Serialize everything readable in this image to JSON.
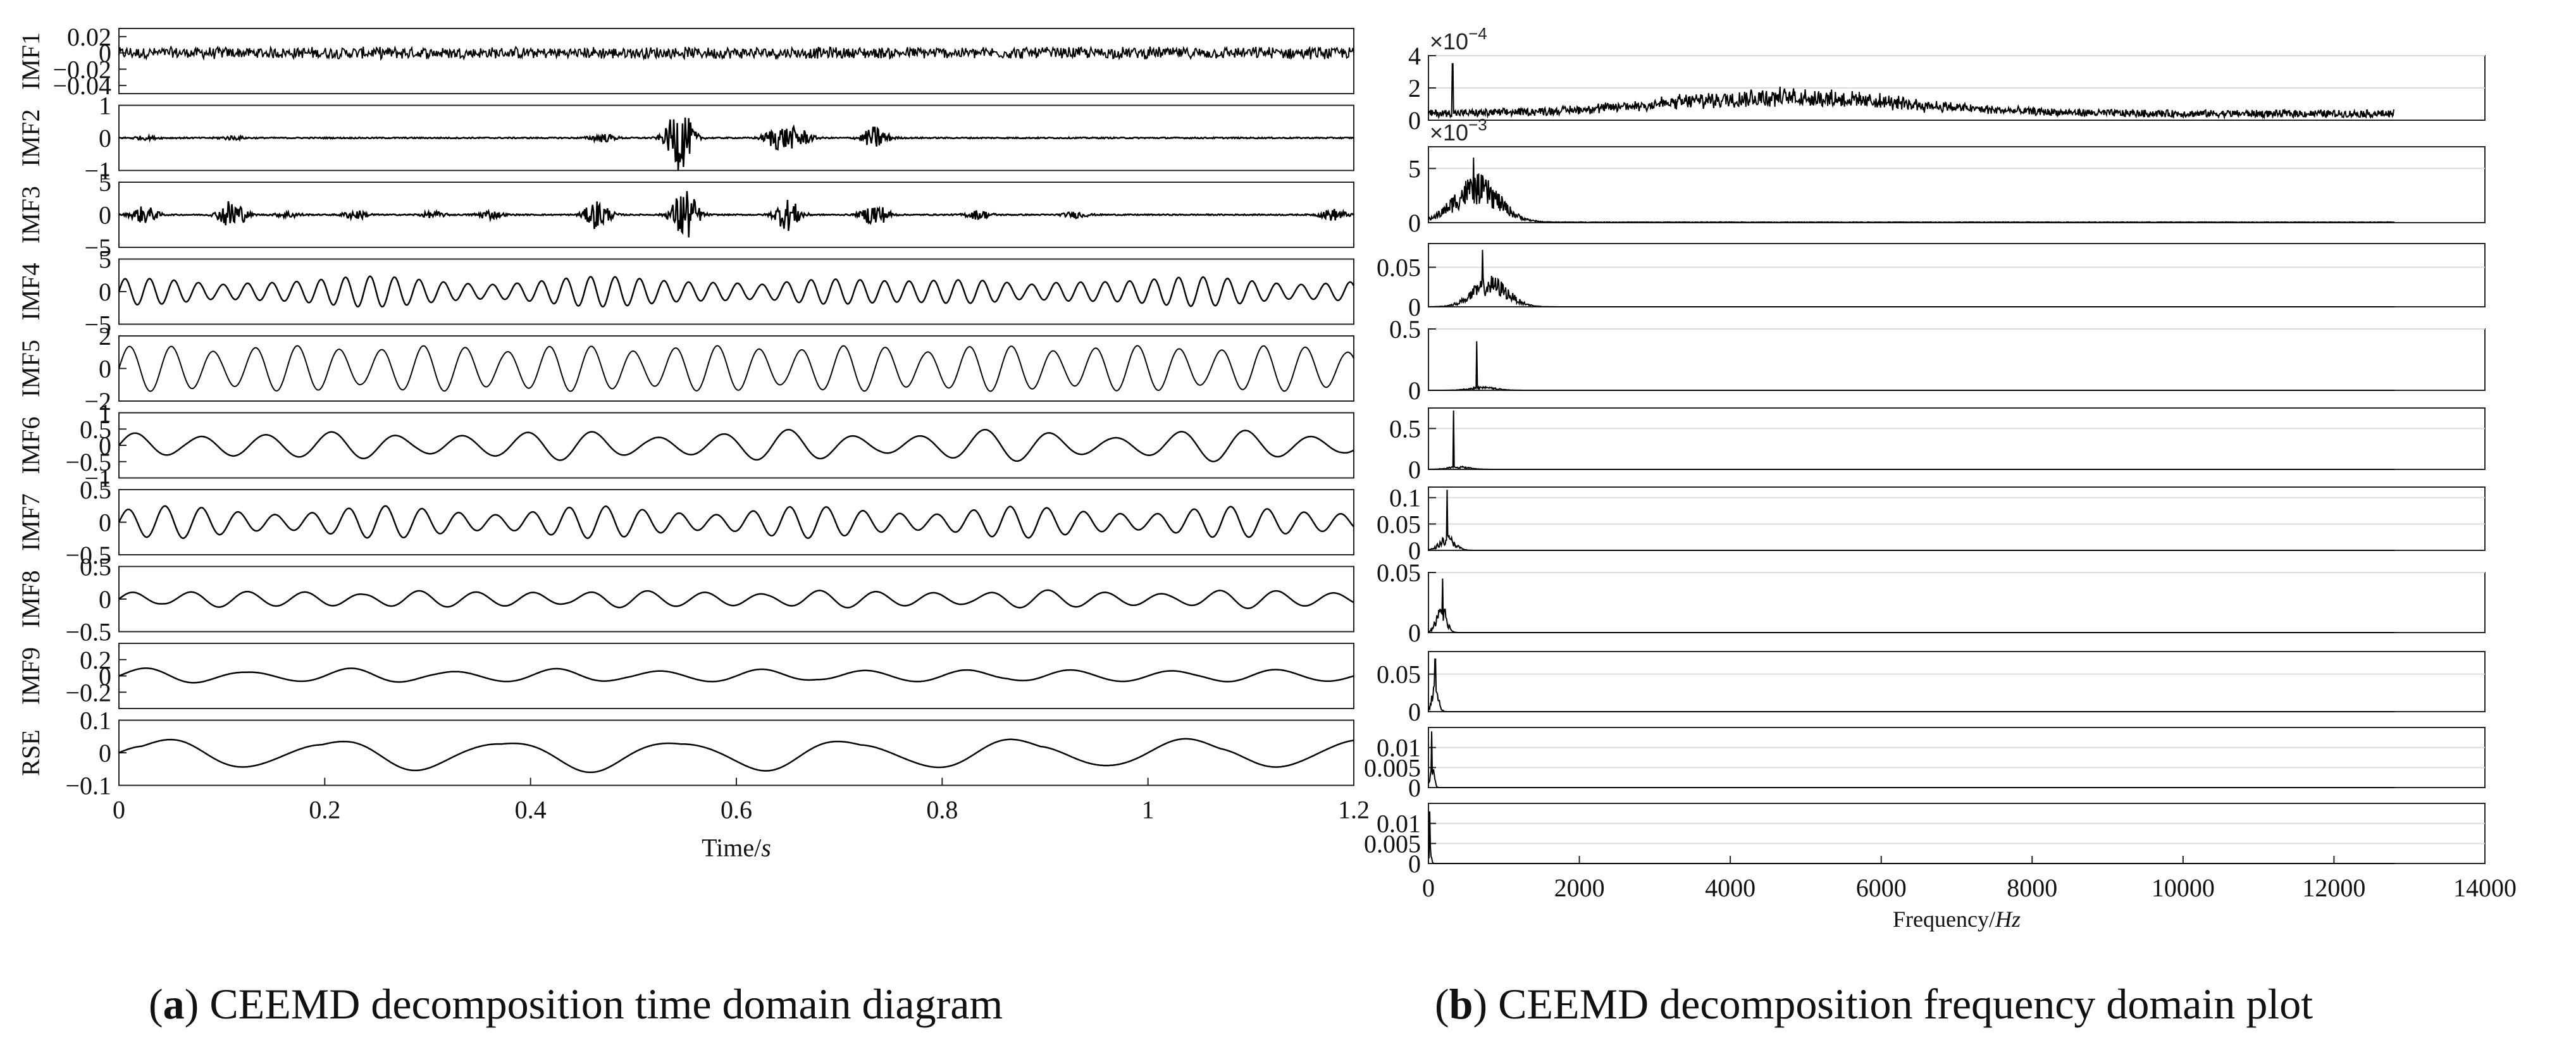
{
  "captions": {
    "a_letter": "a",
    "a_text": "CEEMD decomposition time domain diagram",
    "b_letter": "b",
    "b_text": "CEEMD decomposition frequency domain plot"
  },
  "chart_data": [
    {
      "id": "time-domain",
      "type": "line",
      "xlabel": "Time/s",
      "xlim": [
        0,
        1.2
      ],
      "xticks": [
        "0",
        "0.2",
        "0.4",
        "0.6",
        "0.8",
        "1",
        "1.2"
      ],
      "color": "#000000",
      "series": [
        {
          "name": "IMF1",
          "ylim": [
            -0.05,
            0.03
          ],
          "yticks": [
            "0.02",
            "0",
            "-0.02",
            "-0.04"
          ],
          "amplitude": 0.008,
          "freq_hz": 400,
          "style": "noise"
        },
        {
          "name": "IMF2",
          "ylim": [
            -1,
            1
          ],
          "yticks": [
            "1",
            "0",
            "-1"
          ],
          "amplitude": 1.0,
          "freq_hz": 300,
          "style": "bursts",
          "bursts": [
            [
              0.025,
              0.05
            ],
            [
              0.11,
              0.05
            ],
            [
              0.47,
              0.12
            ],
            [
              0.545,
              1.0
            ],
            [
              0.64,
              0.35
            ],
            [
              0.66,
              0.3
            ],
            [
              0.735,
              0.35
            ]
          ]
        },
        {
          "name": "IMF3",
          "ylim": [
            -5,
            5
          ],
          "yticks": [
            "5",
            "0",
            "-5"
          ],
          "amplitude": 4.5,
          "freq_hz": 200,
          "style": "bursts",
          "bursts": [
            [
              0.025,
              0.3
            ],
            [
              0.11,
              0.55
            ],
            [
              0.165,
              0.1
            ],
            [
              0.23,
              0.15
            ],
            [
              0.305,
              0.1
            ],
            [
              0.36,
              0.15
            ],
            [
              0.465,
              0.5
            ],
            [
              0.55,
              0.95
            ],
            [
              0.65,
              0.55
            ],
            [
              0.735,
              0.4
            ],
            [
              0.835,
              0.15
            ],
            [
              0.93,
              0.1
            ],
            [
              1.18,
              0.2
            ]
          ]
        },
        {
          "name": "IMF4",
          "ylim": [
            -5,
            5
          ],
          "yticks": [
            "5",
            "0",
            "-5"
          ],
          "amplitude": 2.4,
          "freq_hz": 120,
          "style": "modulated"
        },
        {
          "name": "IMF5",
          "ylim": [
            -2,
            2
          ],
          "yticks": [
            "2",
            "0",
            "-2"
          ],
          "amplitude": 1.4,
          "freq_hz": 70,
          "style": "dense"
        },
        {
          "name": "IMF6",
          "ylim": [
            -1,
            1
          ],
          "yticks": [
            "1",
            "0.5",
            "0",
            "-0.5",
            "-1"
          ],
          "amplitude": 0.5,
          "freq_hz": 45,
          "style": "modulated"
        },
        {
          "name": "IMF7",
          "ylim": [
            -0.5,
            0.5
          ],
          "yticks": [
            "0.5",
            "0",
            "-0.5"
          ],
          "amplitude": 0.25,
          "freq_hz": 28,
          "style": "modulated"
        },
        {
          "name": "IMF8",
          "ylim": [
            -0.5,
            0.5
          ],
          "yticks": [
            "0.5",
            "0",
            "-0.5"
          ],
          "amplitude": 0.16,
          "freq_hz": 18,
          "style": "modulated"
        },
        {
          "name": "IMF9",
          "ylim": [
            -0.4,
            0.4
          ],
          "yticks": [
            "0.2",
            "0",
            "-0.2"
          ],
          "amplitude": 0.1,
          "freq_hz": 10,
          "style": "modulated"
        },
        {
          "name": "RSE",
          "ylim": [
            -0.1,
            0.1
          ],
          "yticks": [
            "0.1",
            "0",
            "-0.1"
          ],
          "amplitude": 0.06,
          "freq_hz": 6,
          "style": "modulated"
        }
      ]
    },
    {
      "id": "frequency-domain",
      "type": "line",
      "xlabel_main": "Frequency/",
      "xlabel_unit": "Hz",
      "xlim": [
        0,
        14000
      ],
      "xticks": [
        "0",
        "2000",
        "4000",
        "6000",
        "8000",
        "10000",
        "12000",
        "14000"
      ],
      "data_end_hz": 12800,
      "color": "#000000",
      "series": [
        {
          "ylim": [
            0,
            4
          ],
          "yticks": [
            "4",
            "2",
            "0"
          ],
          "exponent": "×10^-4",
          "exp_base": "×10",
          "exp_pow": "-4",
          "peak_hz": 4700,
          "spread_hz": 2300,
          "peak_value": 1.5,
          "spike_hz": 320,
          "spike_value": 3.5,
          "floor": 0.45
        },
        {
          "ylim": [
            0,
            7
          ],
          "yticks": [
            "5",
            "0"
          ],
          "exponent": "×10^-3",
          "exp_base": "×10",
          "exp_pow": "-3",
          "peak_hz": 640,
          "spread_hz": 420,
          "peak_value": 4.5,
          "spike_hz": 600,
          "spike_value": 6.0,
          "floor": 0.05
        },
        {
          "ylim": [
            0,
            0.08
          ],
          "yticks": [
            "0.05",
            "0"
          ],
          "peak_hz": 820,
          "spread_hz": 330,
          "peak_value": 0.04,
          "spike_hz": 720,
          "spike_value": 0.072,
          "floor": 0.0
        },
        {
          "ylim": [
            0,
            0.5
          ],
          "yticks": [
            "0.5",
            "0"
          ],
          "peak_hz": 720,
          "spread_hz": 250,
          "peak_value": 0.03,
          "spike_hz": 640,
          "spike_value": 0.4,
          "floor": 0.0
        },
        {
          "ylim": [
            0,
            0.75
          ],
          "yticks": [
            "0.5",
            "0"
          ],
          "peak_hz": 400,
          "spread_hz": 200,
          "peak_value": 0.04,
          "spike_hz": 330,
          "spike_value": 0.72,
          "floor": 0.0
        },
        {
          "ylim": [
            0,
            0.12
          ],
          "yticks": [
            "0.1",
            "0.05",
            "0"
          ],
          "peak_hz": 250,
          "spread_hz": 140,
          "peak_value": 0.03,
          "spike_hz": 250,
          "spike_value": 0.115,
          "floor": 0.0
        },
        {
          "ylim": [
            0,
            0.05
          ],
          "yticks": [
            "0.05",
            "0"
          ],
          "peak_hz": 170,
          "spread_hz": 90,
          "peak_value": 0.03,
          "spike_hz": 190,
          "spike_value": 0.045,
          "floor": 0.0
        },
        {
          "ylim": [
            0,
            0.08
          ],
          "yticks": [
            "0.05",
            "0"
          ],
          "peak_hz": 90,
          "spread_hz": 60,
          "peak_value": 0.04,
          "spike_hz": 90,
          "spike_value": 0.07,
          "floor": 0.0
        },
        {
          "ylim": [
            0,
            0.015
          ],
          "yticks": [
            "0.01",
            "0.005",
            "0"
          ],
          "peak_hz": 50,
          "spread_hz": 35,
          "peak_value": 0.009,
          "spike_hz": 45,
          "spike_value": 0.014,
          "floor": 0.0
        },
        {
          "ylim": [
            0,
            0.015
          ],
          "yticks": [
            "0.01",
            "0.005",
            "0"
          ],
          "peak_hz": 25,
          "spread_hz": 20,
          "peak_value": 0.006,
          "spike_hz": 20,
          "spike_value": 0.013,
          "floor": 0.0
        }
      ]
    }
  ]
}
